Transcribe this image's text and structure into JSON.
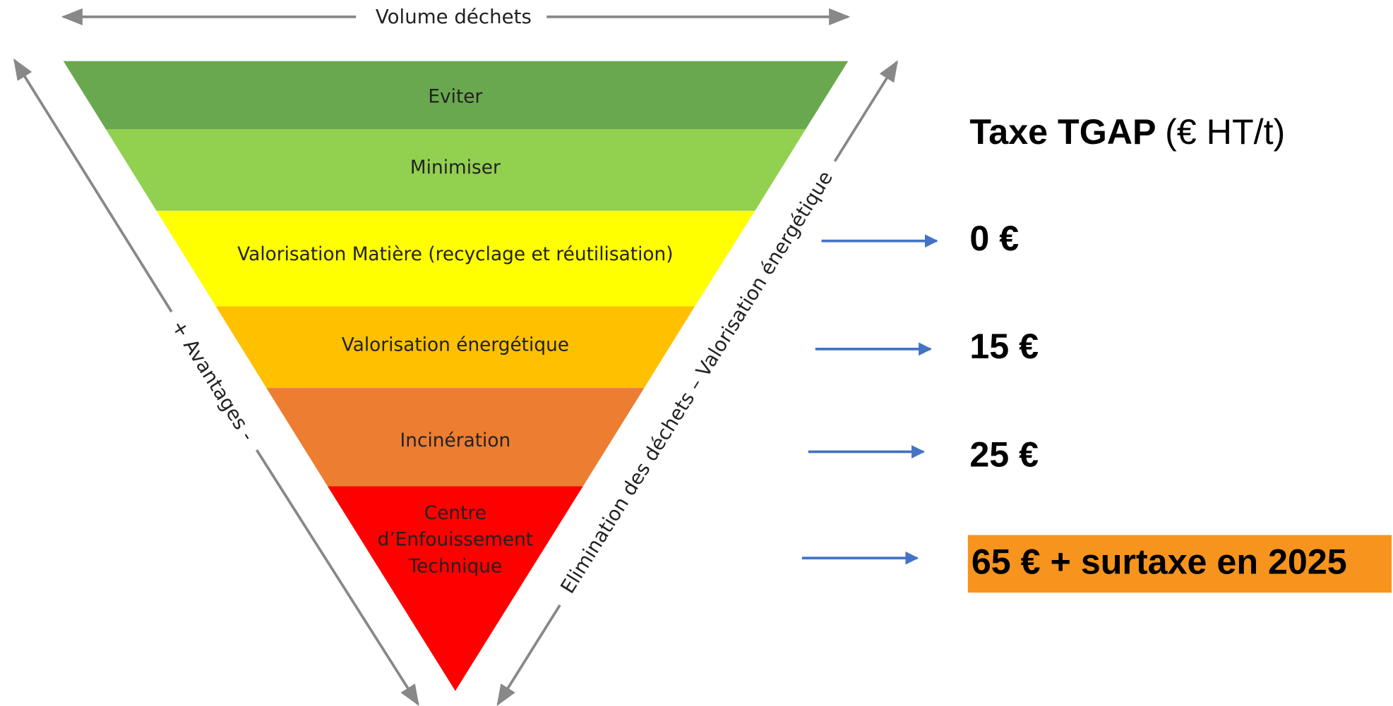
{
  "header": {
    "axis_label": "Volume déchets"
  },
  "pyramid": {
    "levels": [
      [
        "Eviter"
      ],
      [
        "Minimiser"
      ],
      [
        "Valorisation Matière (recyclage et réutilisation)"
      ],
      [
        "Valorisation énergétique"
      ],
      [
        "Incinération"
      ],
      [
        "Centre",
        "d’Enfouissement",
        "Technique"
      ]
    ],
    "left_label": "+ Avantages -",
    "right_label": "Elimination des déchets – Valorisation énergétique"
  },
  "tax": {
    "title": "Taxe TGAP",
    "unit": "(€ HT/t)",
    "values": [
      "0 €",
      "15 €",
      "25 €",
      "65 € + surtaxe en 2025"
    ]
  }
}
